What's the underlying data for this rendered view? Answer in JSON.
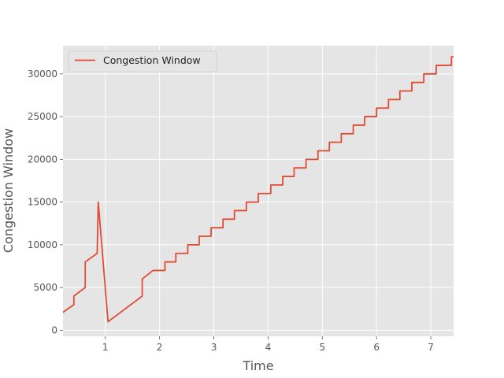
{
  "chart_data": {
    "type": "line",
    "style": "ggplot",
    "title": "",
    "xlabel": "Time",
    "ylabel": "Congestion Window",
    "xlim": [
      0.22,
      7.42
    ],
    "ylim": [
      -700,
      33300
    ],
    "xticks": [
      1,
      2,
      3,
      4,
      5,
      6,
      7
    ],
    "yticks": [
      0,
      5000,
      10000,
      15000,
      20000,
      25000,
      30000
    ],
    "grid": true,
    "legend_position": "top-left",
    "series": [
      {
        "name": "Congestion Window",
        "color": "#E24A33",
        "x": [
          0.22,
          0.42,
          0.42,
          0.63,
          0.63,
          0.85,
          0.87,
          1.05,
          1.68,
          1.68,
          1.88,
          2.1,
          2.1,
          2.3,
          2.3,
          2.52,
          2.52,
          2.73,
          2.73,
          2.95,
          2.95,
          3.17,
          3.17,
          3.38,
          3.38,
          3.6,
          3.6,
          3.82,
          3.82,
          4.05,
          4.05,
          4.27,
          4.27,
          4.48,
          4.48,
          4.7,
          4.7,
          4.92,
          4.92,
          5.13,
          5.13,
          5.35,
          5.35,
          5.57,
          5.57,
          5.78,
          5.78,
          6.0,
          6.0,
          6.22,
          6.22,
          6.43,
          6.43,
          6.65,
          6.65,
          6.87,
          6.87,
          7.1,
          7.1,
          7.38,
          7.38,
          7.42
        ],
        "y": [
          2100,
          3000,
          4000,
          5000,
          8000,
          9000,
          15000,
          1000,
          4000,
          6000,
          7000,
          7000,
          8000,
          8000,
          9000,
          9000,
          10000,
          10000,
          11000,
          11000,
          12000,
          12000,
          13000,
          13000,
          14000,
          14000,
          15000,
          15000,
          16000,
          16000,
          17000,
          17000,
          18000,
          18000,
          19000,
          19000,
          20000,
          20000,
          21000,
          21000,
          22000,
          22000,
          23000,
          23000,
          24000,
          24000,
          25000,
          25000,
          26000,
          26000,
          27000,
          27000,
          28000,
          28000,
          29000,
          29000,
          30000,
          30000,
          31000,
          31000,
          32000,
          32000
        ]
      }
    ]
  }
}
